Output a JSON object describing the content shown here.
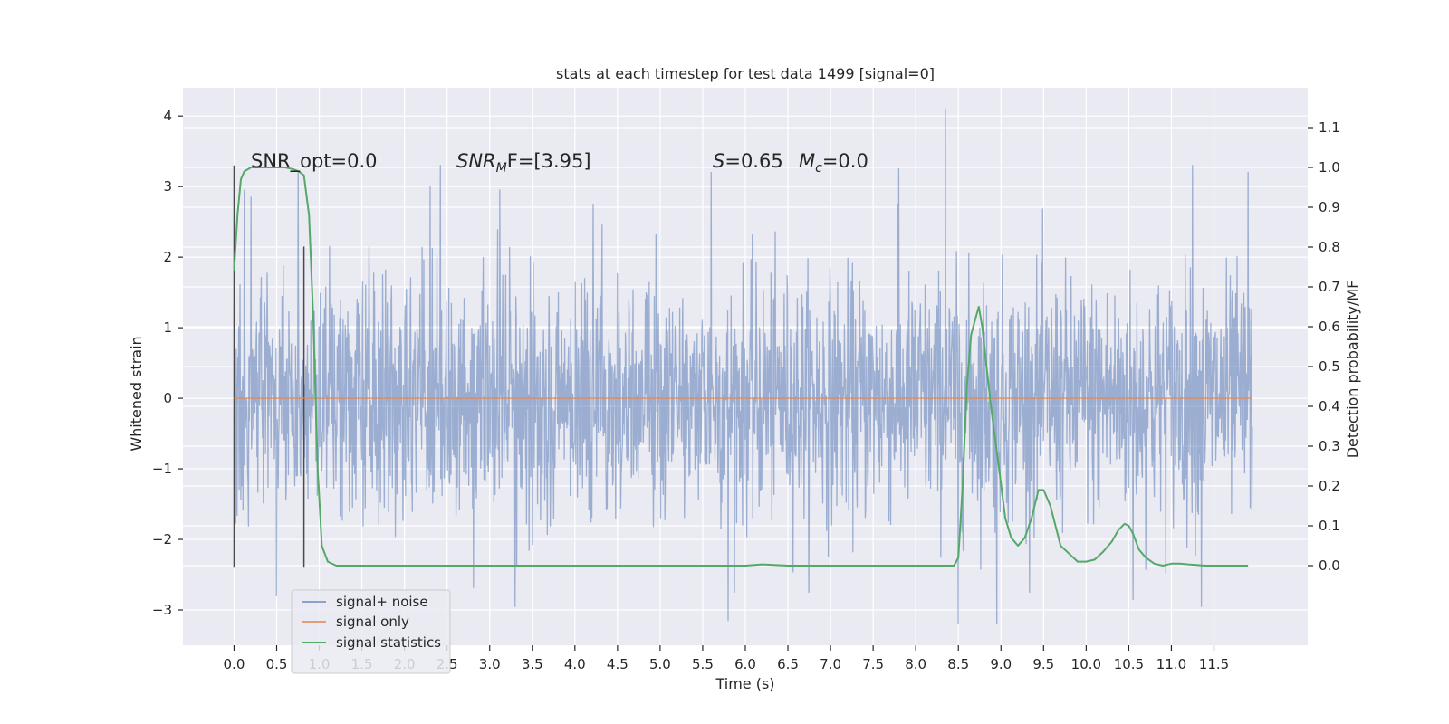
{
  "chart_data": {
    "type": "line",
    "title": "stats at each timestep for test data 1499 [signal=0]",
    "xlabel": "Time (s)",
    "ylabel": "Whitened strain",
    "y2label": "Detection probability/MF",
    "xlim": [
      -0.6,
      12.6
    ],
    "ylim": [
      -3.5,
      4.4
    ],
    "y2lim": [
      -0.2,
      1.2
    ],
    "xticks": [
      0.0,
      0.5,
      1.0,
      1.5,
      2.0,
      2.5,
      3.0,
      3.5,
      4.0,
      4.5,
      5.0,
      5.5,
      6.0,
      6.5,
      7.0,
      7.5,
      8.0,
      8.5,
      9.0,
      9.5,
      10.0,
      10.5,
      11.0,
      11.5
    ],
    "xtick_labels": [
      "0.0",
      "0.5",
      "1.0",
      "1.5",
      "2.0",
      "2.5",
      "3.0",
      "3.5",
      "4.0",
      "4.5",
      "5.0",
      "5.5",
      "6.0",
      "6.5",
      "7.0",
      "7.5",
      "8.0",
      "8.5",
      "9.0",
      "9.5",
      "10.0",
      "10.5",
      "11.0",
      "11.5"
    ],
    "yticks": [
      -3,
      -2,
      -1,
      0,
      1,
      2,
      3,
      4
    ],
    "ytick_labels": [
      "−3",
      "−2",
      "−1",
      "0",
      "1",
      "2",
      "3",
      "4"
    ],
    "y2ticks": [
      0.0,
      0.1,
      0.2,
      0.3,
      0.4,
      0.5,
      0.6,
      0.7,
      0.8,
      0.9,
      1.0,
      1.1
    ],
    "y2tick_labels": [
      "0.0",
      "0.1",
      "0.2",
      "0.3",
      "0.4",
      "0.5",
      "0.6",
      "0.7",
      "0.8",
      "0.9",
      "1.0",
      "1.1"
    ],
    "grid": true,
    "legend_position": "lower-left",
    "annotations": {
      "snr_opt": "SNR_opt=0.0",
      "snr_mf_main": "SNR",
      "snr_mf_sub": "M",
      "snr_mf_rest": "F=[3.95]",
      "s_var": "S",
      "s_rest": "=0.65",
      "mc_var": "M",
      "mc_sub": "c",
      "mc_rest": "=0.0"
    },
    "vertical_lines": [
      {
        "x": 0.0,
        "y_from": -2.4,
        "y_to": 3.3
      },
      {
        "x": 0.82,
        "y_from": -2.4,
        "y_to": 2.15
      }
    ],
    "series": [
      {
        "name": "signal+ noise",
        "axis": "left",
        "color": "#4c72b0",
        "noise": {
          "x_start": 0.0,
          "x_end": 11.95,
          "sigma": 0.85,
          "samples": 2400
        },
        "notable_peaks": [
          {
            "x": 0.12,
            "y": 2.95
          },
          {
            "x": 0.2,
            "y": 2.85
          },
          {
            "x": 0.75,
            "y": 3.2
          },
          {
            "x": 2.3,
            "y": 3.0
          },
          {
            "x": 2.42,
            "y": 3.3
          },
          {
            "x": 3.12,
            "y": 2.95
          },
          {
            "x": 5.6,
            "y": 3.2
          },
          {
            "x": 7.8,
            "y": 3.25
          },
          {
            "x": 8.35,
            "y": 4.1
          },
          {
            "x": 11.25,
            "y": 3.3
          },
          {
            "x": 11.9,
            "y": 3.2
          }
        ],
        "notable_troughs": [
          {
            "x": 0.5,
            "y": -2.8
          },
          {
            "x": 3.3,
            "y": -2.95
          },
          {
            "x": 5.8,
            "y": -3.15
          },
          {
            "x": 8.5,
            "y": -3.2
          },
          {
            "x": 8.95,
            "y": -3.2
          },
          {
            "x": 10.55,
            "y": -2.85
          },
          {
            "x": 11.35,
            "y": -2.95
          }
        ]
      },
      {
        "name": "signal only",
        "axis": "left",
        "color": "#dd8452",
        "x": [
          0.0,
          11.95
        ],
        "y": [
          0.0,
          0.0
        ]
      },
      {
        "name": "signal statistics",
        "axis": "right",
        "color": "#55a868",
        "x": [
          0.0,
          0.04,
          0.08,
          0.12,
          0.2,
          0.3,
          0.45,
          0.6,
          0.7,
          0.76,
          0.82,
          0.88,
          0.93,
          0.98,
          1.03,
          1.1,
          1.2,
          1.5,
          2.0,
          3.0,
          4.0,
          5.0,
          6.0,
          6.2,
          6.5,
          7.0,
          8.0,
          8.45,
          8.5,
          8.55,
          8.6,
          8.65,
          8.7,
          8.74,
          8.78,
          8.83,
          8.9,
          8.98,
          9.05,
          9.12,
          9.2,
          9.28,
          9.36,
          9.44,
          9.5,
          9.58,
          9.64,
          9.7,
          9.8,
          9.9,
          10.0,
          10.1,
          10.2,
          10.3,
          10.38,
          10.45,
          10.5,
          10.55,
          10.62,
          10.7,
          10.8,
          10.9,
          11.0,
          11.1,
          11.2,
          11.4,
          11.6,
          11.8,
          11.9
        ],
        "y": [
          0.74,
          0.88,
          0.97,
          0.99,
          1.0,
          1.0,
          1.0,
          1.0,
          0.995,
          0.99,
          0.98,
          0.88,
          0.62,
          0.25,
          0.05,
          0.01,
          0.0,
          0.0,
          0.0,
          0.0,
          0.0,
          0.0,
          0.0,
          0.003,
          0.0,
          0.0,
          0.0,
          0.0,
          0.02,
          0.2,
          0.45,
          0.58,
          0.62,
          0.65,
          0.6,
          0.5,
          0.37,
          0.24,
          0.12,
          0.07,
          0.05,
          0.07,
          0.12,
          0.19,
          0.19,
          0.15,
          0.1,
          0.05,
          0.03,
          0.01,
          0.01,
          0.015,
          0.035,
          0.06,
          0.09,
          0.105,
          0.1,
          0.08,
          0.04,
          0.02,
          0.005,
          0.0,
          0.005,
          0.005,
          0.003,
          0.0,
          0.0,
          0.0,
          0.0
        ]
      }
    ]
  }
}
